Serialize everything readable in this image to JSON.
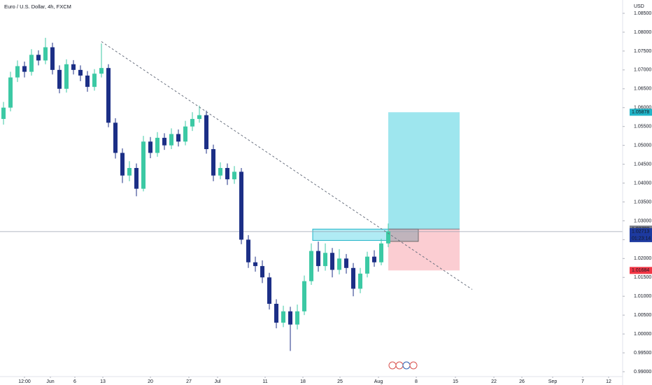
{
  "chart_data": {
    "type": "candlestick",
    "title": "Euro / U.S. Dollar, 4h, FXCM",
    "currency": "USD",
    "up_color": "#3cc9a4",
    "down_color": "#1c2f86",
    "open": [
      1.057,
      1.06,
      1.068,
      1.071,
      1.0695,
      1.074,
      1.0725,
      1.076,
      1.07,
      1.065,
      1.0715,
      1.07,
      1.0685,
      1.0655,
      1.069,
      1.0705,
      1.056,
      1.048,
      1.042,
      1.044,
      1.0385,
      1.051,
      1.048,
      1.052,
      1.05,
      1.053,
      1.051,
      1.055,
      1.057,
      1.058,
      1.049,
      1.042,
      1.044,
      1.041,
      1.043,
      1.025,
      1.019,
      1.018,
      1.015,
      1.008,
      1.003,
      1.006,
      1.0025,
      1.006,
      1.014,
      1.022,
      1.018,
      1.0215,
      1.017,
      1.02,
      1.0175,
      1.012,
      1.016,
      1.0205,
      1.019,
      1.024
    ],
    "high": [
      1.0615,
      1.0695,
      1.0725,
      1.0722,
      1.0755,
      1.0752,
      1.0785,
      1.0772,
      1.0712,
      1.0728,
      1.0726,
      1.0712,
      1.0697,
      1.0702,
      1.077,
      1.0715,
      1.0572,
      1.0492,
      1.0458,
      1.0452,
      1.0525,
      1.0522,
      1.0535,
      1.0532,
      1.0545,
      1.0542,
      1.0565,
      1.0588,
      1.0605,
      1.0592,
      1.0502,
      1.0455,
      1.0452,
      1.0445,
      1.044,
      1.0262,
      1.0205,
      1.0195,
      1.0162,
      1.0092,
      1.0075,
      1.0072,
      1.0078,
      1.0155,
      1.024,
      1.0245,
      1.024,
      1.0228,
      1.0225,
      1.0212,
      1.0188,
      1.0175,
      1.0218,
      1.0222,
      1.0252,
      1.0293
    ],
    "low": [
      1.0555,
      1.059,
      1.0668,
      1.068,
      1.0685,
      1.0712,
      1.0715,
      1.0688,
      1.0638,
      1.064,
      1.0688,
      1.067,
      1.0642,
      1.0645,
      1.068,
      1.0548,
      1.0465,
      1.04,
      1.0405,
      1.0365,
      1.0378,
      1.0466,
      1.047,
      1.0488,
      1.049,
      1.0497,
      1.05,
      1.0538,
      1.056,
      1.0478,
      1.0405,
      1.041,
      1.0395,
      1.0398,
      1.0238,
      1.0175,
      1.0165,
      1.0135,
      1.0065,
      1.0015,
      1.0018,
      0.9955,
      1.0012,
      1.005,
      1.013,
      1.0165,
      1.0168,
      1.015,
      1.0158,
      1.016,
      1.01,
      1.0108,
      1.015,
      1.0178,
      1.0182,
      1.023
    ],
    "close": [
      1.06,
      1.068,
      1.071,
      1.0695,
      1.074,
      1.0725,
      1.076,
      1.07,
      1.065,
      1.0715,
      1.07,
      1.0685,
      1.0655,
      1.069,
      1.0705,
      1.056,
      1.048,
      1.042,
      1.044,
      1.0385,
      1.051,
      1.048,
      1.052,
      1.05,
      1.053,
      1.051,
      1.055,
      1.057,
      1.058,
      1.049,
      1.042,
      1.044,
      1.041,
      1.043,
      1.025,
      1.019,
      1.018,
      1.015,
      1.008,
      1.003,
      1.006,
      1.0025,
      1.006,
      1.014,
      1.022,
      1.018,
      1.0215,
      1.017,
      1.02,
      1.0175,
      1.012,
      1.016,
      1.0205,
      1.019,
      1.024,
      1.0272
    ],
    "xlim": [
      -0.5,
      88.5
    ],
    "xticks": [
      {
        "value": 3.0,
        "label": "12:00"
      },
      {
        "value": 6.7,
        "label": "Jun"
      },
      {
        "value": 10.2,
        "label": "6"
      },
      {
        "value": 14.2,
        "label": "13"
      },
      {
        "value": 21.0,
        "label": "20"
      },
      {
        "value": 26.5,
        "label": "27"
      },
      {
        "value": 30.6,
        "label": "Jul"
      },
      {
        "value": 37.4,
        "label": "11"
      },
      {
        "value": 42.8,
        "label": "18"
      },
      {
        "value": 48.1,
        "label": "25"
      },
      {
        "value": 53.6,
        "label": "Aug"
      },
      {
        "value": 59.0,
        "label": "8"
      },
      {
        "value": 64.6,
        "label": "15"
      },
      {
        "value": 70.1,
        "label": "22"
      },
      {
        "value": 74.1,
        "label": "26"
      },
      {
        "value": 78.5,
        "label": "Sep"
      },
      {
        "value": 82.8,
        "label": "7"
      },
      {
        "value": 86.5,
        "label": "12"
      }
    ],
    "ylim": [
      0.98833,
      1.08853
    ],
    "yticks": [
      {
        "value": 1.085,
        "label": "1.08500"
      },
      {
        "value": 1.08,
        "label": "1.08000"
      },
      {
        "value": 1.075,
        "label": "1.07500"
      },
      {
        "value": 1.07,
        "label": "1.07000"
      },
      {
        "value": 1.065,
        "label": "1.06500"
      },
      {
        "value": 1.06,
        "label": "1.06000"
      },
      {
        "value": 1.055,
        "label": "1.05500"
      },
      {
        "value": 1.05,
        "label": "1.05000"
      },
      {
        "value": 1.045,
        "label": "1.04500"
      },
      {
        "value": 1.04,
        "label": "1.04000"
      },
      {
        "value": 1.035,
        "label": "1.03500"
      },
      {
        "value": 1.03,
        "label": "1.03000"
      },
      {
        "value": 1.025,
        "label": "1.02500"
      },
      {
        "value": 1.02,
        "label": "1.02000"
      },
      {
        "value": 1.015,
        "label": "1.01500"
      },
      {
        "value": 1.01,
        "label": "1.01000"
      },
      {
        "value": 1.005,
        "label": "1.00500"
      },
      {
        "value": 1.0,
        "label": "1.00000"
      },
      {
        "value": 0.995,
        "label": "0.99500"
      },
      {
        "value": 0.99,
        "label": "0.99000"
      }
    ],
    "trendline": {
      "x": [
        14,
        67
      ],
      "y": [
        1.0775,
        1.0118
      ],
      "color": "#6b7280"
    },
    "zone": {
      "x": [
        44.2,
        55
      ],
      "y": [
        1.0248,
        1.0278
      ],
      "color": "#8fe3f0"
    },
    "position": {
      "x": [
        55,
        65.2
      ],
      "entry": 1.0278,
      "target": 1.05878,
      "stop": 1.01684,
      "entry_x_end": 59.3,
      "current": 1.02713,
      "profit_color": "#9ee6ee",
      "loss_color": "#fbcdd2"
    },
    "price_labels": [
      {
        "value": 1.05878,
        "label": "1.05878",
        "color": "#22b5c8"
      },
      {
        "value": 1.0278,
        "label": "1.02780",
        "color": "#787b86"
      },
      {
        "value": 1.02713,
        "label": "1.02713",
        "color": "#1d3aa0",
        "countdown": "01:23:14"
      },
      {
        "value": 1.01684,
        "label": "1.01684",
        "color": "#f23645"
      }
    ]
  }
}
